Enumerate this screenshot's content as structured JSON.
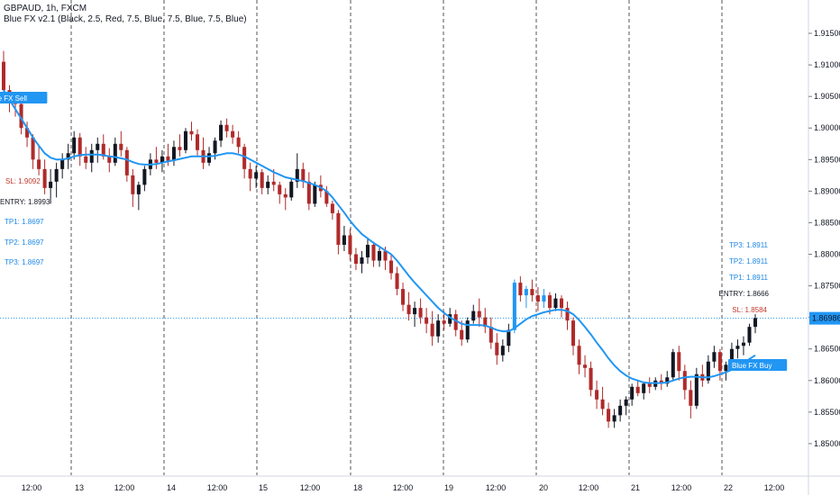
{
  "header": {
    "title": "GBPAUD, 1h, FXCM",
    "indicator": "Blue FX v2.1 (Black, 2.5, Red, 7.5, Blue, 7.5, Blue, 7.5, Blue)"
  },
  "colors": {
    "up": "#131722",
    "down": "#b02a2a",
    "buy_candle": "#2196f3",
    "ma": "#2196f3",
    "price_line": "#2196f3",
    "sl_text": "#c0392b",
    "tp_text": "#1e88e5",
    "entry_text": "#131722",
    "grid_dash": "#555555"
  },
  "price_tag": "1.86986",
  "signals": {
    "sell": {
      "label": "Blue FX Sell",
      "sl": "SL: 1.9092",
      "entry": "ENTRY: 1.8993",
      "tp1": "TP1: 1.8697",
      "tp2": "TP2: 1.8697",
      "tp3": "TP3: 1.8697"
    },
    "buy": {
      "label": "Blue FX Buy",
      "tp3": "TP3: 1.8911",
      "tp2": "TP2: 1.8911",
      "tp1": "TP1: 1.8911",
      "entry": "ENTRY: 1.8666",
      "sl": "SL: 1.8584"
    }
  },
  "chart_data": {
    "type": "candlestick",
    "symbol": "GBPAUD",
    "timeframe": "1h",
    "ylim": [
      1.845,
      1.918
    ],
    "y_ticks": [
      "1.91500",
      "1.91000",
      "1.90500",
      "1.90000",
      "1.89500",
      "1.89000",
      "1.88500",
      "1.88000",
      "1.87500",
      "1.87000",
      "1.86500",
      "1.86000",
      "1.85500",
      "1.85000"
    ],
    "x_ticks": [
      "12:00",
      "13",
      "12:00",
      "14",
      "12:00",
      "15",
      "12:00",
      "18",
      "12:00",
      "19",
      "12:00",
      "20",
      "12:00",
      "21",
      "12:00",
      "22",
      "12:00"
    ],
    "day_separators": [
      "13",
      "14",
      "15",
      "18",
      "19",
      "20",
      "21",
      "22"
    ],
    "last_price": 1.86986,
    "series": [
      {
        "name": "GBPAUD",
        "values": [
          [
            1.9105,
            1.9122,
            1.9045,
            1.906
          ],
          [
            1.906,
            1.9068,
            1.9025,
            1.904
          ],
          [
            1.904,
            1.9055,
            1.9018,
            1.9038
          ],
          [
            1.9038,
            1.9042,
            1.899,
            1.9
          ],
          [
            1.9,
            1.901,
            1.897,
            1.8985
          ],
          [
            1.8985,
            1.899,
            1.8935,
            1.895
          ],
          [
            1.895,
            1.8972,
            1.8925,
            1.8935
          ],
          [
            1.8935,
            1.895,
            1.8895,
            1.8905
          ],
          [
            1.8905,
            1.8935,
            1.888,
            1.8915
          ],
          [
            1.8915,
            1.8945,
            1.889,
            1.8935
          ],
          [
            1.8935,
            1.896,
            1.892,
            1.895
          ],
          [
            1.895,
            1.8975,
            1.8935,
            1.896
          ],
          [
            1.896,
            1.8995,
            1.895,
            1.8985
          ],
          [
            1.8985,
            1.8992,
            1.894,
            1.8955
          ],
          [
            1.8955,
            1.897,
            1.8935,
            1.8945
          ],
          [
            1.8945,
            1.8975,
            1.893,
            1.8965
          ],
          [
            1.8965,
            1.8985,
            1.8945,
            1.8975
          ],
          [
            1.8975,
            1.899,
            1.895,
            1.8955
          ],
          [
            1.8955,
            1.8968,
            1.893,
            1.8945
          ],
          [
            1.8945,
            1.8985,
            1.894,
            1.8975
          ],
          [
            1.8975,
            1.8995,
            1.8955,
            1.8965
          ],
          [
            1.8965,
            1.897,
            1.8915,
            1.8925
          ],
          [
            1.8925,
            1.8935,
            1.8875,
            1.8895
          ],
          [
            1.8895,
            1.8915,
            1.887,
            1.891
          ],
          [
            1.891,
            1.894,
            1.89,
            1.8935
          ],
          [
            1.8935,
            1.896,
            1.8925,
            1.895
          ],
          [
            1.895,
            1.897,
            1.8935,
            1.8945
          ],
          [
            1.8945,
            1.8965,
            1.893,
            1.8955
          ],
          [
            1.8955,
            1.8975,
            1.894,
            1.8948
          ],
          [
            1.8948,
            1.898,
            1.894,
            1.897
          ],
          [
            1.897,
            1.899,
            1.8955,
            1.8965
          ],
          [
            1.8965,
            1.9,
            1.896,
            1.8995
          ],
          [
            1.8995,
            1.901,
            1.898,
            1.899
          ],
          [
            1.899,
            1.8998,
            1.8955,
            1.8965
          ],
          [
            1.8965,
            1.8985,
            1.8935,
            1.8945
          ],
          [
            1.8945,
            1.897,
            1.894,
            1.896
          ],
          [
            1.896,
            1.8985,
            1.895,
            1.898
          ],
          [
            1.898,
            1.9012,
            1.897,
            1.9005
          ],
          [
            1.9005,
            1.9015,
            1.8985,
            1.8995
          ],
          [
            1.8995,
            1.9005,
            1.8975,
            1.8985
          ],
          [
            1.8985,
            1.8995,
            1.896,
            1.897
          ],
          [
            1.897,
            1.8975,
            1.892,
            1.8935
          ],
          [
            1.8935,
            1.8945,
            1.89,
            1.892
          ],
          [
            1.892,
            1.894,
            1.8905,
            1.893
          ],
          [
            1.893,
            1.8935,
            1.8895,
            1.8905
          ],
          [
            1.8905,
            1.8925,
            1.8895,
            1.8915
          ],
          [
            1.8915,
            1.8935,
            1.89,
            1.891
          ],
          [
            1.891,
            1.8915,
            1.888,
            1.8895
          ],
          [
            1.8895,
            1.8905,
            1.887,
            1.889
          ],
          [
            1.889,
            1.892,
            1.8885,
            1.8915
          ],
          [
            1.8915,
            1.896,
            1.8905,
            1.8935
          ],
          [
            1.8935,
            1.8945,
            1.8905,
            1.8915
          ],
          [
            1.8915,
            1.893,
            1.887,
            1.888
          ],
          [
            1.888,
            1.8915,
            1.8875,
            1.891
          ],
          [
            1.891,
            1.8925,
            1.889,
            1.89
          ],
          [
            1.89,
            1.8908,
            1.8875,
            1.888
          ],
          [
            1.888,
            1.8885,
            1.8855,
            1.8865
          ],
          [
            1.8865,
            1.887,
            1.88,
            1.8815
          ],
          [
            1.8815,
            1.8845,
            1.8805,
            1.883
          ],
          [
            1.883,
            1.884,
            1.879,
            1.88
          ],
          [
            1.88,
            1.881,
            1.8775,
            1.8785
          ],
          [
            1.8785,
            1.8805,
            1.877,
            1.8795
          ],
          [
            1.8795,
            1.8825,
            1.8785,
            1.8815
          ],
          [
            1.8815,
            1.882,
            1.878,
            1.879
          ],
          [
            1.879,
            1.881,
            1.878,
            1.8805
          ],
          [
            1.8805,
            1.8812,
            1.8775,
            1.879
          ],
          [
            1.879,
            1.88,
            1.876,
            1.877
          ],
          [
            1.877,
            1.878,
            1.8735,
            1.8745
          ],
          [
            1.8745,
            1.8755,
            1.871,
            1.872
          ],
          [
            1.872,
            1.874,
            1.8695,
            1.8705
          ],
          [
            1.8705,
            1.8725,
            1.8685,
            1.8715
          ],
          [
            1.8715,
            1.873,
            1.869,
            1.87
          ],
          [
            1.87,
            1.8715,
            1.8675,
            1.869
          ],
          [
            1.869,
            1.871,
            1.8655,
            1.867
          ],
          [
            1.867,
            1.8705,
            1.866,
            1.8695
          ],
          [
            1.8695,
            1.871,
            1.868,
            1.869
          ],
          [
            1.869,
            1.8715,
            1.8685,
            1.8705
          ],
          [
            1.8705,
            1.8712,
            1.867,
            1.868
          ],
          [
            1.868,
            1.8695,
            1.8655,
            1.8665
          ],
          [
            1.8665,
            1.87,
            1.866,
            1.8695
          ],
          [
            1.8695,
            1.872,
            1.869,
            1.871
          ],
          [
            1.871,
            1.873,
            1.8685,
            1.87
          ],
          [
            1.87,
            1.8715,
            1.8675,
            1.8685
          ],
          [
            1.8685,
            1.87,
            1.865,
            1.866
          ],
          [
            1.866,
            1.8675,
            1.8625,
            1.864
          ],
          [
            1.864,
            1.8665,
            1.863,
            1.8655
          ],
          [
            1.8655,
            1.869,
            1.8645,
            1.868
          ],
          [
            1.868,
            1.876,
            1.8675,
            1.8755
          ],
          [
            1.8755,
            1.8765,
            1.8725,
            1.8735
          ],
          [
            1.8735,
            1.875,
            1.8715,
            1.8745
          ],
          [
            1.8745,
            1.876,
            1.8725,
            1.8735
          ],
          [
            1.8735,
            1.8748,
            1.871,
            1.8725
          ],
          [
            1.8725,
            1.8745,
            1.8715,
            1.8735
          ],
          [
            1.8735,
            1.874,
            1.8705,
            1.8715
          ],
          [
            1.8715,
            1.8738,
            1.871,
            1.873
          ],
          [
            1.873,
            1.8735,
            1.87,
            1.8715
          ],
          [
            1.8715,
            1.8725,
            1.868,
            1.8695
          ],
          [
            1.8695,
            1.87,
            1.864,
            1.8655
          ],
          [
            1.8655,
            1.8665,
            1.861,
            1.8625
          ],
          [
            1.8625,
            1.864,
            1.8605,
            1.862
          ],
          [
            1.862,
            1.863,
            1.8575,
            1.8585
          ],
          [
            1.8585,
            1.86,
            1.8555,
            1.857
          ],
          [
            1.857,
            1.859,
            1.8545,
            1.8555
          ],
          [
            1.8555,
            1.8565,
            1.8525,
            1.8535
          ],
          [
            1.8535,
            1.8555,
            1.8525,
            1.8545
          ],
          [
            1.8545,
            1.857,
            1.8535,
            1.856
          ],
          [
            1.856,
            1.8575,
            1.8545,
            1.857
          ],
          [
            1.857,
            1.8595,
            1.856,
            1.859
          ],
          [
            1.859,
            1.86,
            1.8575,
            1.858
          ],
          [
            1.858,
            1.8598,
            1.857,
            1.8595
          ],
          [
            1.8595,
            1.8605,
            1.858,
            1.859
          ],
          [
            1.859,
            1.8605,
            1.8585,
            1.86
          ],
          [
            1.86,
            1.861,
            1.8585,
            1.8595
          ],
          [
            1.8595,
            1.8615,
            1.859,
            1.8605
          ],
          [
            1.8605,
            1.865,
            1.86,
            1.8645
          ],
          [
            1.8645,
            1.8655,
            1.86,
            1.8615
          ],
          [
            1.8615,
            1.8625,
            1.857,
            1.8585
          ],
          [
            1.8585,
            1.86,
            1.854,
            1.856
          ],
          [
            1.856,
            1.862,
            1.8555,
            1.861
          ],
          [
            1.861,
            1.8625,
            1.859,
            1.86
          ],
          [
            1.86,
            1.864,
            1.8595,
            1.863
          ],
          [
            1.863,
            1.8655,
            1.862,
            1.8645
          ],
          [
            1.8645,
            1.865,
            1.86,
            1.8615
          ],
          [
            1.8615,
            1.863,
            1.86,
            1.8625
          ],
          [
            1.8625,
            1.866,
            1.862,
            1.865
          ],
          [
            1.865,
            1.8665,
            1.8635,
            1.8655
          ],
          [
            1.8655,
            1.867,
            1.864,
            1.866
          ],
          [
            1.866,
            1.869,
            1.8655,
            1.8685
          ],
          [
            1.8685,
            1.8705,
            1.8675,
            1.8699
          ]
        ]
      },
      {
        "name": "MA",
        "values": [
          1.906,
          1.9045,
          1.903,
          1.9015,
          1.9,
          1.8985,
          1.8972,
          1.896,
          1.8953,
          1.895,
          1.895,
          1.8952,
          1.8955,
          1.8957,
          1.8958,
          1.8958,
          1.8958,
          1.8957,
          1.8955,
          1.8954,
          1.8952,
          1.895,
          1.8946,
          1.8943,
          1.8942,
          1.8942,
          1.8943,
          1.8945,
          1.8947,
          1.8949,
          1.8951,
          1.8953,
          1.8955,
          1.8955,
          1.8955,
          1.8955,
          1.8956,
          1.8958,
          1.896,
          1.896,
          1.8958,
          1.8955,
          1.895,
          1.8945,
          1.894,
          1.8935,
          1.893,
          1.8926,
          1.8922,
          1.892,
          1.8918,
          1.8916,
          1.8913,
          1.891,
          1.8906,
          1.89,
          1.889,
          1.8878,
          1.8866,
          1.8853,
          1.8842,
          1.8832,
          1.8825,
          1.8818,
          1.8812,
          1.8806,
          1.88,
          1.879,
          1.8778,
          1.8766,
          1.8755,
          1.8745,
          1.8735,
          1.8725,
          1.8715,
          1.8707,
          1.87,
          1.8695,
          1.869,
          1.8688,
          1.8688,
          1.8688,
          1.8687,
          1.8684,
          1.868,
          1.8678,
          1.8678,
          1.8683,
          1.869,
          1.8697,
          1.8702,
          1.8705,
          1.8708,
          1.871,
          1.8712,
          1.8712,
          1.871,
          1.8705,
          1.8696,
          1.8685,
          1.8673,
          1.866,
          1.8648,
          1.8635,
          1.8624,
          1.8615,
          1.8608,
          1.8603,
          1.86,
          1.8597,
          1.8596,
          1.8596,
          1.8596,
          1.8597,
          1.86,
          1.8603,
          1.8605,
          1.8606,
          1.8606,
          1.8605,
          1.8605,
          1.8607,
          1.861,
          1.8613,
          1.8617,
          1.8622,
          1.8628,
          1.8634,
          1.864
        ]
      }
    ],
    "buy_candle_start": 87,
    "sell_signal_candle": 1,
    "buy_signal_candle": 122
  }
}
